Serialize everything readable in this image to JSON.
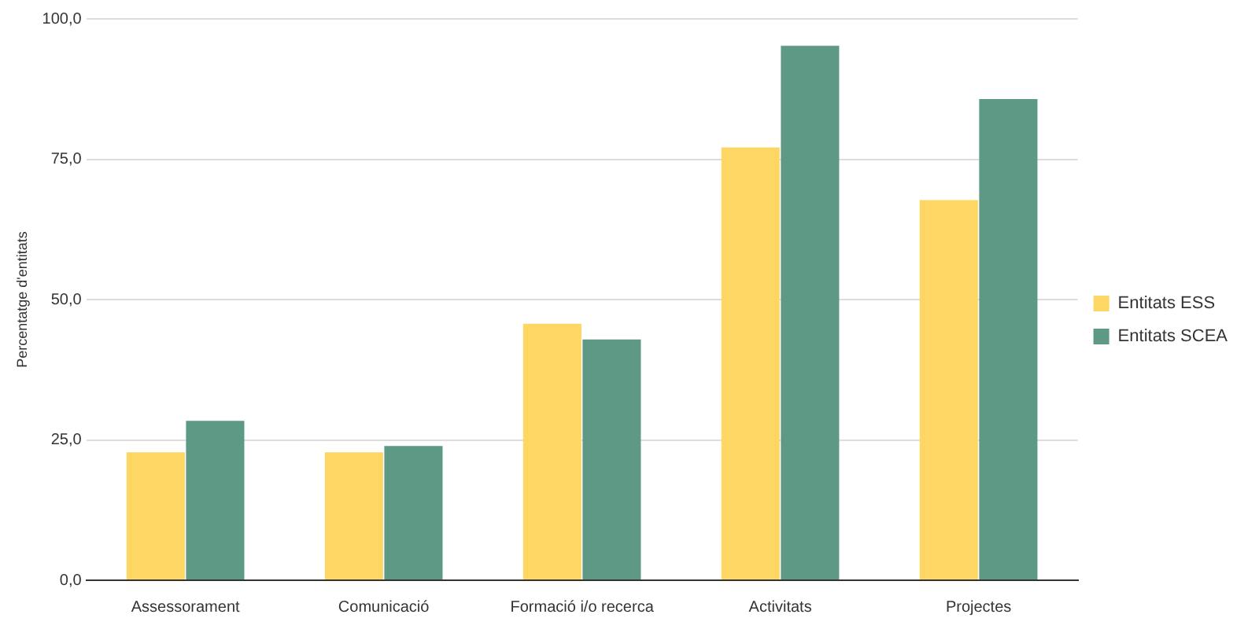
{
  "chart_data": {
    "type": "bar",
    "ylabel": "Percentatge d'entitats",
    "categories": [
      "Assessorament",
      "Comunicació",
      "Formació i/o recerca",
      "Activitats",
      "Projectes"
    ],
    "series": [
      {
        "name": "Entitats ESS",
        "color": "#fdd663",
        "values": [
          22.8,
          22.8,
          45.7,
          77.1,
          67.7
        ]
      },
      {
        "name": "Entitats SCEA",
        "color": "#5e9986",
        "values": [
          28.4,
          23.9,
          42.9,
          95.2,
          85.7
        ]
      }
    ],
    "ylim": [
      0,
      100
    ],
    "yticks": [
      {
        "value": 0,
        "label": "0,0"
      },
      {
        "value": 25,
        "label": "25,0"
      },
      {
        "value": 50,
        "label": "50,0"
      },
      {
        "value": 75,
        "label": "75,0"
      },
      {
        "value": 100,
        "label": "100,0"
      }
    ],
    "grid": "y",
    "legend": "right"
  }
}
